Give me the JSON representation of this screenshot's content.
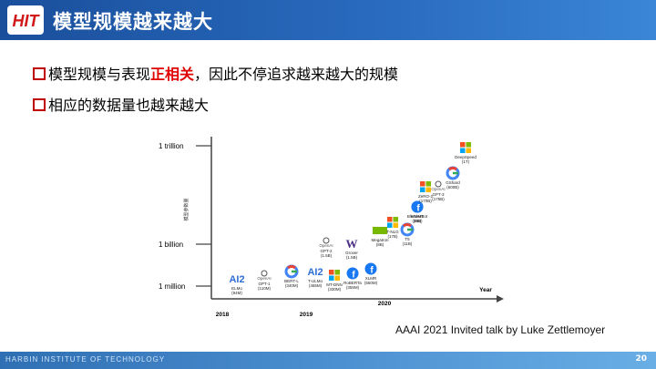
{
  "header": {
    "title": "模型规模越来越大",
    "logo_text": "HIT"
  },
  "bullets": [
    {
      "pre": "模型规模与表现",
      "highlight": "正相关",
      "post": "，因此不停追求越来越大的规模"
    },
    {
      "pre": "相应的数据量也越来越大",
      "highlight": "",
      "post": ""
    }
  ],
  "chart_data": {
    "type": "scatter",
    "ylabel": "模型参数量",
    "xlabel": "Year",
    "y_ticks": [
      "1 million",
      "1 billion",
      "1 trillion"
    ],
    "x_ticks": [
      "2018",
      "2019",
      "2020"
    ],
    "points": [
      {
        "org": "AI2",
        "name": "ELMo",
        "params": "(94M)"
      },
      {
        "org": "OpenAI",
        "name": "GPT-1",
        "params": "(110M)"
      },
      {
        "org": "Google",
        "name": "BERT-L",
        "params": "(340M)"
      },
      {
        "org": "AI2",
        "name": "T-ULMo",
        "params": "(465M)"
      },
      {
        "org": "Microsoft",
        "name": "MT-DNN",
        "params": "(330M)"
      },
      {
        "org": "Facebook",
        "name": "RoBERTa",
        "params": "(355M)"
      },
      {
        "org": "Facebook",
        "name": "XLMR",
        "params": "(550M)"
      },
      {
        "org": "OpenAI",
        "name": "GPT-2",
        "params": "(1.5B)"
      },
      {
        "org": "UW",
        "name": "Grover",
        "params": "(1.5B)"
      },
      {
        "org": "NVIDIA",
        "name": "Megatron",
        "params": "(8B)"
      },
      {
        "org": "Microsoft",
        "name": "T-NLG",
        "params": "(17B)"
      },
      {
        "org": "Google",
        "name": "T5",
        "params": "(11B)"
      },
      {
        "org": "Facebook",
        "name": "BlenderBot",
        "params": "(9B)"
      },
      {
        "org": "Facebook",
        "name": "MMMT",
        "params": "(15B)"
      },
      {
        "org": "Microsoft",
        "name": "ZeRO-2",
        "params": "(170B)"
      },
      {
        "org": "OpenAI",
        "name": "GPT-3",
        "params": "(175B)"
      },
      {
        "org": "Google",
        "name": "GShard",
        "params": "(600B)"
      },
      {
        "org": "Microsoft",
        "name": "DeepSpeed",
        "params": "(1T)"
      }
    ]
  },
  "credit": "AAAI 2021 Invited talk by Luke Zettlemoyer",
  "footer": {
    "institute": "HARBIN INSTITUTE OF TECHNOLOGY",
    "page": "20"
  },
  "colors": {
    "header": "#1a4f9c",
    "accent_red": "#c00000"
  }
}
